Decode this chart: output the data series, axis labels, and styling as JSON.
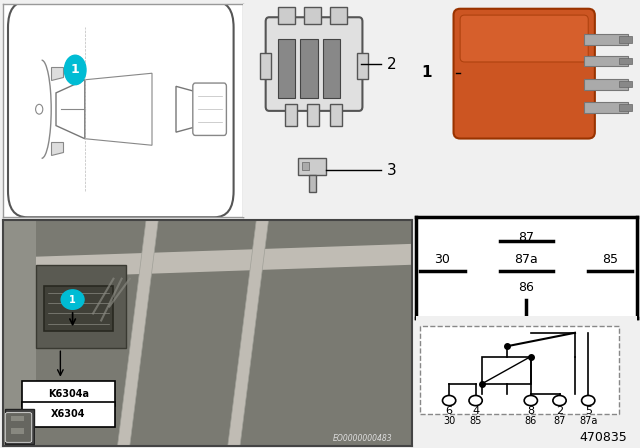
{
  "doc_number": "470835",
  "eo_number": "EO0000000483",
  "label1": "K6304a",
  "label2": "X6304",
  "callout_color": "#00bcd4",
  "relay_color": "#cc5522",
  "bg_color": "#f0f0f0",
  "top_panel_bg": "#ffffff",
  "photo_bg": "#7a7a6a"
}
